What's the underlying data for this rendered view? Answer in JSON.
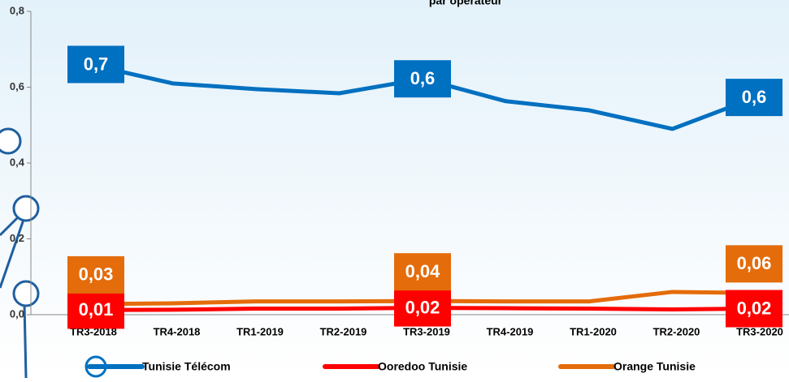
{
  "chart_data": {
    "type": "line",
    "title": "par opérateur",
    "categories": [
      "TR3-2018",
      "TR4-2018",
      "TR1-2019",
      "TR2-2019",
      "TR3-2019",
      "TR4-2019",
      "TR1-2020",
      "TR2-2020",
      "TR3-2020"
    ],
    "ylim": [
      0,
      0.8
    ],
    "yticks": [
      {
        "value": 0,
        "label": "0,0"
      },
      {
        "value": 0.2,
        "label": "0,2"
      },
      {
        "value": 0.4,
        "label": "0,4"
      },
      {
        "value": 0.6,
        "label": "0,6"
      },
      {
        "value": 0.8,
        "label": "0,8"
      }
    ],
    "series": [
      {
        "name": "Tunisie Télécom",
        "color": "#0070c0",
        "values": [
          0.66,
          0.61,
          0.595,
          0.584,
          0.622,
          0.563,
          0.539,
          0.49,
          0.573
        ],
        "value_labels": [
          "0,7",
          null,
          null,
          null,
          "0,6",
          null,
          null,
          null,
          "0,6"
        ]
      },
      {
        "name": "Ooredoo Tunisie",
        "color": "#ff0000",
        "values": [
          0.012,
          0.013,
          0.016,
          0.016,
          0.018,
          0.017,
          0.016,
          0.014,
          0.016
        ],
        "value_labels": [
          "0,01",
          null,
          null,
          null,
          "0,02",
          null,
          null,
          null,
          "0,02"
        ]
      },
      {
        "name": "Orange Tunisie",
        "color": "#e46c0a",
        "values": [
          0.028,
          0.03,
          0.035,
          0.035,
          0.036,
          0.035,
          0.035,
          0.06,
          0.057
        ],
        "value_labels": [
          "0,03",
          null,
          null,
          null,
          "0,04",
          null,
          null,
          null,
          "0,06"
        ]
      }
    ],
    "legend": "bottom"
  }
}
